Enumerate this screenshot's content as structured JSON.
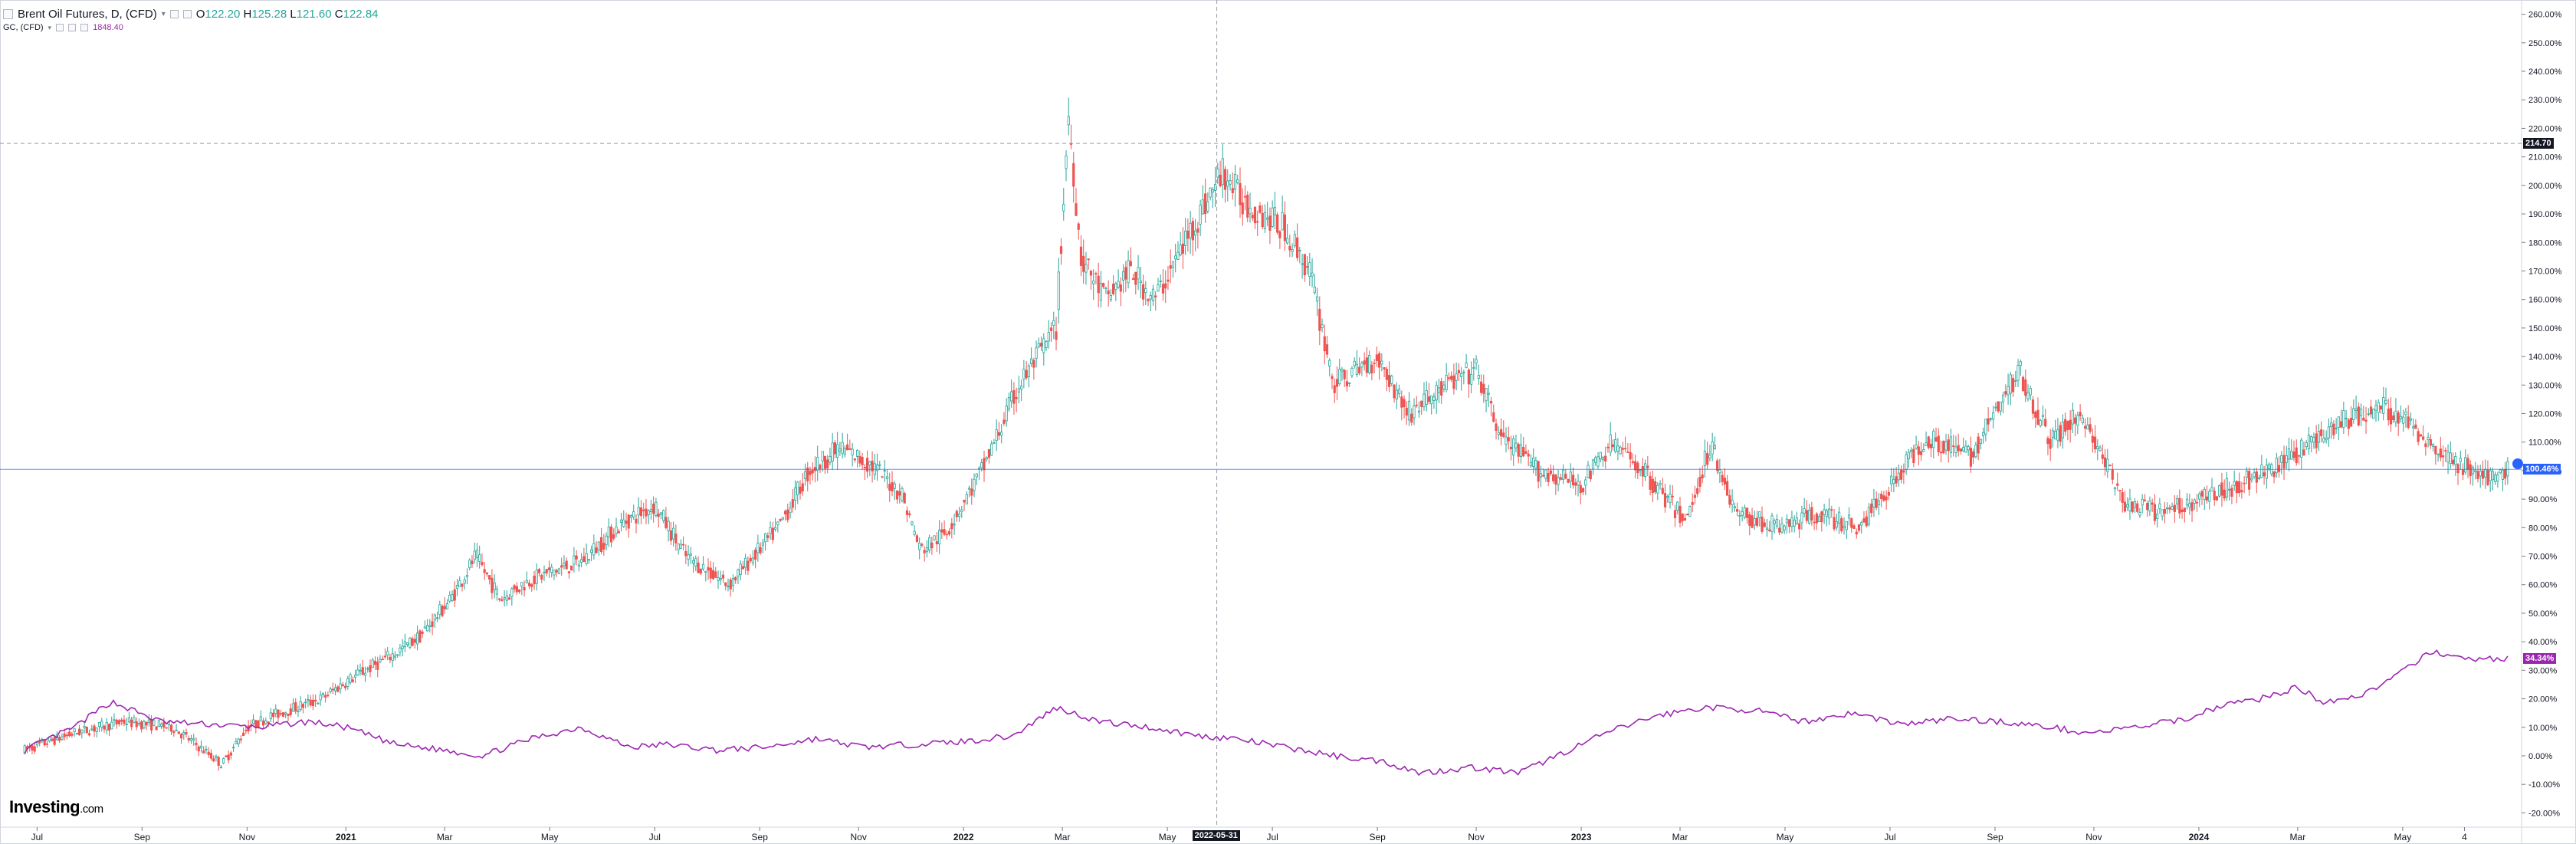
{
  "legend": {
    "main_symbol": "Brent Oil Futures, D, (CFD)",
    "open_label": "O",
    "open": "122.20",
    "high_label": "H",
    "high": "125.28",
    "low_label": "L",
    "low": "121.60",
    "close_label": "C",
    "close": "122.84",
    "compare_symbol": "GC, (CFD)",
    "compare_value": "1848.40"
  },
  "branding": {
    "name": "Investing",
    "suffix": ".com"
  },
  "crosshair": {
    "date_label": "2022-05-31",
    "price_label": "214.70"
  },
  "tags": {
    "baseline": "100.46%",
    "gold_last": "34.34%"
  },
  "colors": {
    "up": "#26a69a",
    "down": "#ef5350",
    "gold": "#9c27b0",
    "baseline": "#2962ff",
    "crosshair": "#9598a1",
    "price_tag": "#131722"
  },
  "chart_data": {
    "type": "line",
    "yaxis_unit": "%",
    "ylim": [
      -25,
      265
    ],
    "y_ticks": [
      "-20.00%",
      "-10.00%",
      "0.00%",
      "10.00%",
      "20.00%",
      "30.00%",
      "40.00%",
      "50.00%",
      "60.00%",
      "70.00%",
      "80.00%",
      "90.00%",
      "100.00%",
      "110.00%",
      "120.00%",
      "130.00%",
      "140.00%",
      "150.00%",
      "160.00%",
      "170.00%",
      "180.00%",
      "190.00%",
      "200.00%",
      "210.00%",
      "220.00%",
      "230.00%",
      "240.00%",
      "250.00%",
      "260.00%"
    ],
    "x_ticks": [
      "Jul",
      "Sep",
      "Nov",
      "2021",
      "Mar",
      "May",
      "Jul",
      "Sep",
      "Nov",
      "2022",
      "Mar",
      "May",
      "Jul",
      "Sep",
      "Nov",
      "2023",
      "Mar",
      "May",
      "Jul",
      "Sep",
      "Nov",
      "2024",
      "Mar",
      "May",
      "4"
    ],
    "grid": false,
    "series": [
      {
        "name": "Brent Oil Futures, D, (CFD)",
        "style": "candlestick",
        "x": [
          2020.48,
          2020.56,
          2020.64,
          2020.72,
          2020.8,
          2020.84,
          2020.88,
          2020.96,
          2021.0,
          2021.08,
          2021.12,
          2021.17,
          2021.21,
          2021.25,
          2021.3,
          2021.38,
          2021.45,
          2021.5,
          2021.55,
          2021.62,
          2021.7,
          2021.75,
          2021.8,
          2021.85,
          2021.9,
          2021.93,
          2021.97,
          2022.03,
          2022.09,
          2022.15,
          2022.17,
          2022.19,
          2022.23,
          2022.27,
          2022.31,
          2022.37,
          2022.42,
          2022.45,
          2022.52,
          2022.56,
          2022.6,
          2022.67,
          2022.72,
          2022.78,
          2022.83,
          2022.87,
          2022.93,
          2023.0,
          2023.05,
          2023.1,
          2023.17,
          2023.21,
          2023.25,
          2023.32,
          2023.38,
          2023.45,
          2023.5,
          2023.56,
          2023.63,
          2023.71,
          2023.76,
          2023.81,
          2023.88,
          2023.94,
          2024.0,
          2024.06,
          2024.12,
          2024.18,
          2024.24,
          2024.3,
          2024.35,
          2024.4,
          2024.44,
          2024.48,
          2024.5
        ],
        "values": [
          2,
          8,
          12,
          10,
          -3,
          10,
          14,
          20,
          26,
          36,
          42,
          55,
          70,
          55,
          62,
          68,
          82,
          88,
          70,
          60,
          80,
          100,
          108,
          102,
          92,
          72,
          78,
          100,
          130,
          150,
          225,
          175,
          160,
          170,
          160,
          185,
          205,
          195,
          185,
          170,
          130,
          140,
          120,
          130,
          135,
          112,
          100,
          95,
          110,
          100,
          82,
          110,
          85,
          80,
          85,
          80,
          95,
          112,
          105,
          135,
          110,
          120,
          88,
          85,
          90,
          95,
          100,
          110,
          118,
          122,
          115,
          105,
          100,
          96,
          100
        ]
      },
      {
        "name": "GC, (CFD)",
        "style": "line",
        "x": [
          2020.48,
          2020.56,
          2020.62,
          2020.7,
          2020.78,
          2020.86,
          2020.94,
          2021.0,
          2021.08,
          2021.16,
          2021.22,
          2021.3,
          2021.38,
          2021.46,
          2021.52,
          2021.6,
          2021.68,
          2021.76,
          2021.84,
          2021.92,
          2022.0,
          2022.08,
          2022.15,
          2022.22,
          2022.3,
          2022.38,
          2022.44,
          2022.52,
          2022.6,
          2022.68,
          2022.74,
          2022.82,
          2022.9,
          2022.98,
          2023.04,
          2023.12,
          2023.2,
          2023.28,
          2023.36,
          2023.44,
          2023.52,
          2023.6,
          2023.68,
          2023.76,
          2023.82,
          2023.9,
          2023.98,
          2024.04,
          2024.1,
          2024.16,
          2024.2,
          2024.26,
          2024.32,
          2024.38,
          2024.42,
          2024.48,
          2024.5
        ],
        "values": [
          2,
          10,
          19,
          12,
          11,
          10,
          12,
          10,
          4,
          2,
          0,
          6,
          10,
          3,
          4,
          2,
          3,
          6,
          3,
          4,
          5,
          7,
          17,
          12,
          10,
          7,
          6,
          3,
          0,
          -2,
          -6,
          -4,
          -6,
          2,
          8,
          14,
          17,
          16,
          12,
          15,
          11,
          13,
          12,
          10,
          8,
          10,
          13,
          18,
          20,
          24,
          19,
          21,
          28,
          37,
          34,
          34,
          34
        ]
      }
    ],
    "baseline": 100.46,
    "crosshair_y": 214.7,
    "crosshair_x": "2022-05-31"
  }
}
